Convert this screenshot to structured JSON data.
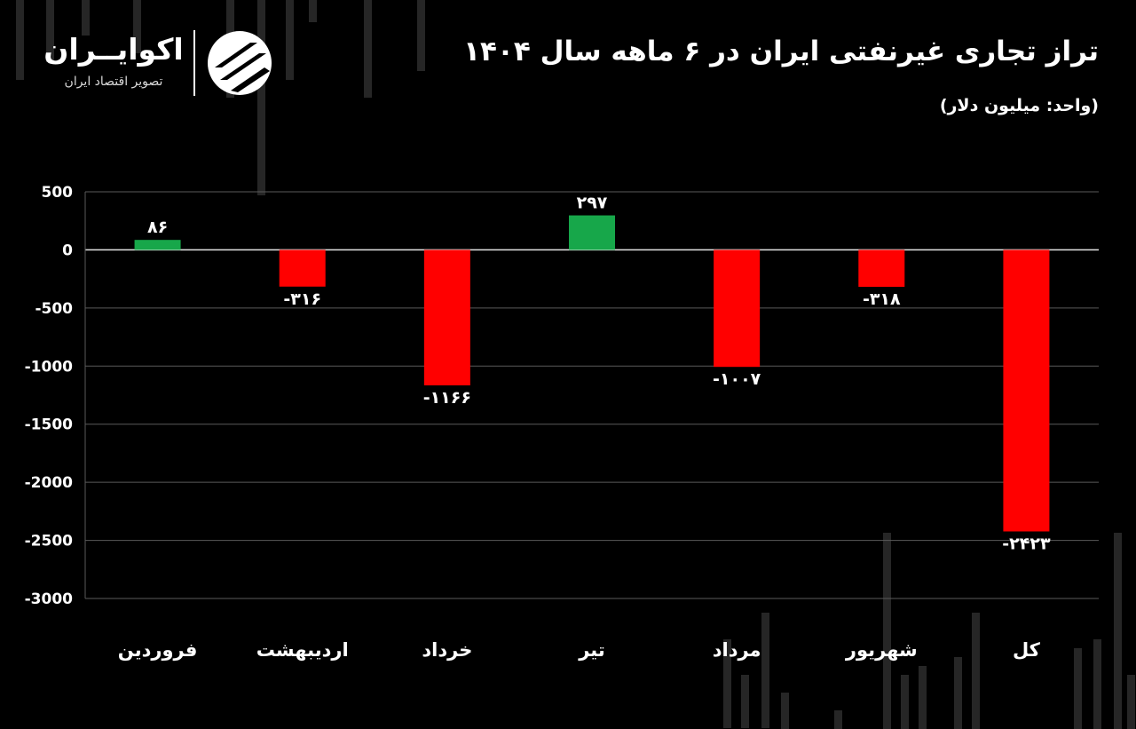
{
  "header": {
    "title": "تراز تجاری غیرنفتی ایران در ۶ ماهه سال ۱۴۰۴",
    "unit": "(واحد: میلیون دلار)"
  },
  "brand": {
    "name": "اکوایــران",
    "tagline": "تصویر اقتصاد ایران",
    "icon": "ecoiran-logo-icon"
  },
  "colors": {
    "background": "#000000",
    "positive": "#17a74a",
    "negative": "#ff0000",
    "text": "#ffffff",
    "grid": "#5a5a5a"
  },
  "chart_data": {
    "type": "bar",
    "title": "تراز تجاری غیرنفتی ایران در ۶ ماهه سال ۱۴۰۴",
    "xlabel": "",
    "ylabel": "",
    "ylim": [
      -3000,
      500
    ],
    "yticks": [
      500,
      0,
      -500,
      -1000,
      -1500,
      -2000,
      -2500,
      -3000
    ],
    "ytick_labels": [
      "500",
      "0",
      "-500",
      "-1000",
      "-1500",
      "-2000",
      "-2500",
      "-3000"
    ],
    "grid": true,
    "legend": "none",
    "categories": [
      "فروردین",
      "اردیبهشت",
      "خرداد",
      "تیر",
      "مرداد",
      "شهریور",
      "کل"
    ],
    "values": [
      86,
      -316,
      -1166,
      297,
      -1007,
      -318,
      -2423
    ],
    "value_labels": [
      "۸۶",
      "-۳۱۶",
      "-۱۱۶۶",
      "۲۹۷",
      "-۱۰۰۷",
      "-۳۱۸",
      "-۲۴۲۳"
    ]
  }
}
